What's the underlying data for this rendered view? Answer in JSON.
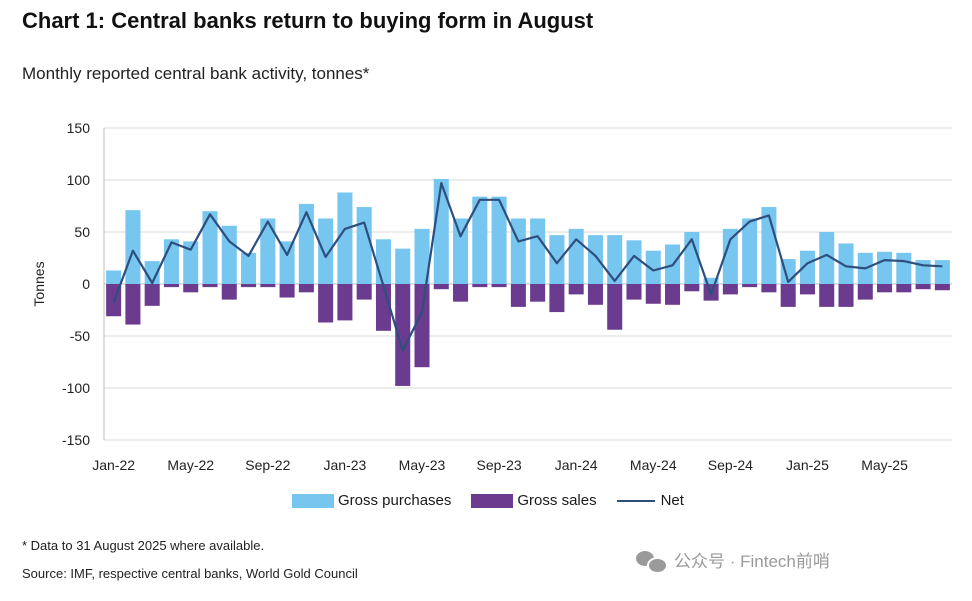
{
  "title": "Chart 1: Central banks return to buying form in August",
  "subtitle": "Monthly reported central bank activity, tonnes*",
  "footnote": "* Data to 31 August 2025 where available.",
  "source": "Source: IMF, respective central banks, World Gold Council",
  "watermark": "公众号 · Fintech前哨",
  "colors": {
    "purchases": "#77c6f0",
    "sales": "#6a3b8e",
    "net": "#2e4e7e",
    "grid": "#d9d9d9"
  },
  "chart_data": {
    "type": "bar",
    "ylabel": "Tonnes",
    "ylim": [
      -150,
      150
    ],
    "yticks": [
      150,
      100,
      50,
      0,
      -50,
      -100,
      -150
    ],
    "grid": true,
    "legend_position": "bottom",
    "categories": [
      "Jan-22",
      "Feb-22",
      "Mar-22",
      "Apr-22",
      "May-22",
      "Jun-22",
      "Jul-22",
      "Aug-22",
      "Sep-22",
      "Oct-22",
      "Nov-22",
      "Dec-22",
      "Jan-23",
      "Feb-23",
      "Mar-23",
      "Apr-23",
      "May-23",
      "Jun-23",
      "Jul-23",
      "Aug-23",
      "Sep-23",
      "Oct-23",
      "Nov-23",
      "Dec-23",
      "Jan-24",
      "Feb-24",
      "Mar-24",
      "Apr-24",
      "May-24",
      "Jun-24",
      "Jul-24",
      "Aug-24",
      "Sep-24",
      "Oct-24",
      "Nov-24",
      "Dec-24",
      "Jan-25",
      "Feb-25",
      "Mar-25",
      "Apr-25",
      "May-25",
      "Jun-25",
      "Jul-25",
      "Aug-25"
    ],
    "tick_labels": [
      "Jan-22",
      "May-22",
      "Sep-22",
      "Jan-23",
      "May-23",
      "Sep-23",
      "Jan-24",
      "May-24",
      "Sep-24",
      "Jan-25",
      "May-25"
    ],
    "series": [
      {
        "name": "Gross purchases",
        "type": "bar",
        "values": [
          13,
          71,
          22,
          43,
          41,
          70,
          56,
          30,
          63,
          41,
          77,
          63,
          88,
          74,
          43,
          34,
          53,
          101,
          63,
          84,
          84,
          63,
          63,
          47,
          53,
          47,
          47,
          42,
          32,
          38,
          50,
          6,
          53,
          63,
          74,
          24,
          32,
          50,
          39,
          30,
          31,
          30,
          23,
          23
        ]
      },
      {
        "name": "Gross sales",
        "type": "bar",
        "values": [
          -31,
          -39,
          -21,
          -3,
          -8,
          -3,
          -15,
          -3,
          -3,
          -13,
          -8,
          -37,
          -35,
          -15,
          -45,
          -98,
          -80,
          -5,
          -17,
          -3,
          -3,
          -22,
          -17,
          -27,
          -10,
          -20,
          -44,
          -15,
          -19,
          -20,
          -7,
          -16,
          -10,
          -3,
          -8,
          -22,
          -10,
          -22,
          -22,
          -15,
          -8,
          -8,
          -5,
          -6
        ]
      },
      {
        "name": "Net",
        "type": "line",
        "values": [
          -18,
          32,
          1,
          40,
          33,
          67,
          41,
          27,
          60,
          28,
          69,
          26,
          53,
          59,
          -2,
          -64,
          -27,
          97,
          46,
          81,
          81,
          41,
          46,
          20,
          43,
          27,
          3,
          27,
          13,
          18,
          43,
          -10,
          43,
          60,
          66,
          2,
          20,
          28,
          17,
          15,
          23,
          22,
          18,
          17
        ]
      }
    ]
  }
}
